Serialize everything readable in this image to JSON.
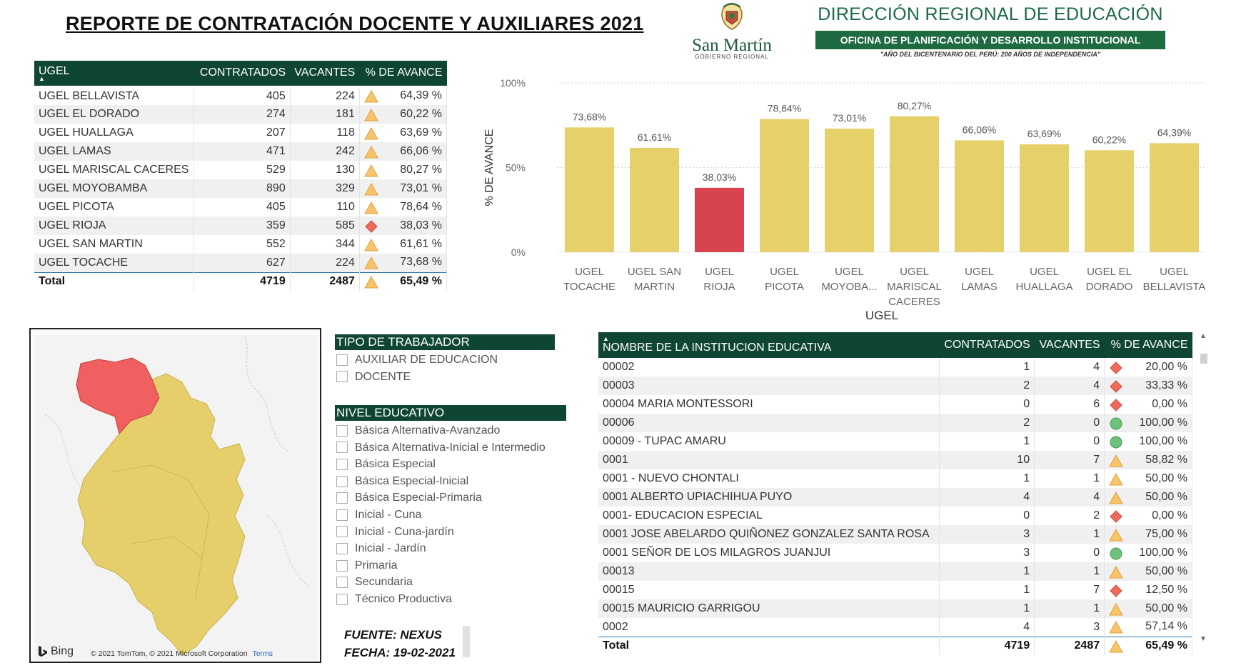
{
  "header": {
    "title": "REPORTE DE CONTRATACIÓN DOCENTE Y AUXILIARES 2021",
    "logo_name": "San Martín",
    "logo_sub": "GOBIERNO REGIONAL",
    "dre_title": "DIRECCIÓN REGIONAL DE EDUCACIÓN",
    "dre_office": "OFICINA DE PLANIFICACIÓN Y DESARROLLO INSTITUCIONAL",
    "dre_motto": "\"AÑO DEL BICENTENARIO DEL PERÚ: 200 AÑOS DE INDEPENDENCIA\""
  },
  "ugel_table": {
    "columns": [
      "UGEL",
      "CONTRATADOS",
      "VACANTES",
      "% DE AVANCE"
    ],
    "rows": [
      {
        "ugel": "UGEL BELLAVISTA",
        "contratados": "405",
        "vacantes": "224",
        "icon": "warning-triangle",
        "avance": "64,39 %"
      },
      {
        "ugel": "UGEL EL DORADO",
        "contratados": "274",
        "vacantes": "181",
        "icon": "warning-triangle",
        "avance": "60,22 %"
      },
      {
        "ugel": "UGEL HUALLAGA",
        "contratados": "207",
        "vacantes": "118",
        "icon": "warning-triangle",
        "avance": "63,69 %"
      },
      {
        "ugel": "UGEL LAMAS",
        "contratados": "471",
        "vacantes": "242",
        "icon": "warning-triangle",
        "avance": "66,06 %"
      },
      {
        "ugel": "UGEL MARISCAL CACERES",
        "contratados": "529",
        "vacantes": "130",
        "icon": "warning-triangle",
        "avance": "80,27 %"
      },
      {
        "ugel": "UGEL MOYOBAMBA",
        "contratados": "890",
        "vacantes": "329",
        "icon": "warning-triangle",
        "avance": "73,01 %"
      },
      {
        "ugel": "UGEL PICOTA",
        "contratados": "405",
        "vacantes": "110",
        "icon": "warning-triangle",
        "avance": "78,64 %"
      },
      {
        "ugel": "UGEL RIOJA",
        "contratados": "359",
        "vacantes": "585",
        "icon": "red-diamond",
        "avance": "38,03 %"
      },
      {
        "ugel": "UGEL SAN MARTIN",
        "contratados": "552",
        "vacantes": "344",
        "icon": "warning-triangle",
        "avance": "61,61 %"
      },
      {
        "ugel": "UGEL TOCACHE",
        "contratados": "627",
        "vacantes": "224",
        "icon": "warning-triangle",
        "avance": "73,68 %"
      }
    ],
    "total": {
      "label": "Total",
      "contratados": "4719",
      "vacantes": "2487",
      "icon": "warning-triangle",
      "avance": "65,49 %"
    }
  },
  "chart_data": {
    "type": "bar",
    "categories": [
      "UGEL TOCACHE",
      "UGEL SAN MARTIN",
      "UGEL RIOJA",
      "UGEL PICOTA",
      "UGEL MOYOBA...",
      "UGEL MARISCAL CACERES",
      "UGEL LAMAS",
      "UGEL HUALLAGA",
      "UGEL EL DORADO",
      "UGEL BELLAVISTA"
    ],
    "category_lines": [
      [
        "UGEL",
        "TOCACHE"
      ],
      [
        "UGEL SAN",
        "MARTIN"
      ],
      [
        "UGEL",
        "RIOJA"
      ],
      [
        "UGEL",
        "PICOTA"
      ],
      [
        "UGEL",
        "MOYOBA..."
      ],
      [
        "UGEL",
        "MARISCAL",
        "CACERES"
      ],
      [
        "UGEL",
        "LAMAS"
      ],
      [
        "UGEL",
        "HUALLAGA"
      ],
      [
        "UGEL EL",
        "DORADO"
      ],
      [
        "UGEL",
        "BELLAVISTA"
      ]
    ],
    "values": [
      73.68,
      61.61,
      38.03,
      78.64,
      73.01,
      80.27,
      66.06,
      63.69,
      60.22,
      64.39
    ],
    "data_labels": [
      "73,68%",
      "61,61%",
      "38,03%",
      "78,64%",
      "73,01%",
      "80,27%",
      "66,06%",
      "63,69%",
      "60,22%",
      "64,39%"
    ],
    "xlabel": "UGEL",
    "ylabel": "% DE AVANCE",
    "ylim": [
      0,
      100
    ],
    "yticks": [
      0,
      50,
      100
    ],
    "ytick_labels": [
      "0%",
      "50%",
      "100%"
    ],
    "grid": true,
    "colors": {
      "default": "#e6d06a",
      "highlight": "#d7434f"
    },
    "highlight_category": "UGEL RIOJA"
  },
  "map": {
    "provider": "Bing",
    "copyright": "© 2021 TomTom, © 2021 Microsoft Corporation",
    "terms": "Terms",
    "colors": {
      "region": "#e6cf6a",
      "highlight": "#f06060"
    }
  },
  "slicers": {
    "tipo": {
      "title": "TIPO DE TRABAJADOR",
      "items": [
        "AUXILIAR DE EDUCACION",
        "DOCENTE"
      ]
    },
    "nivel": {
      "title": "NIVEL EDUCATIVO",
      "items": [
        "Básica Alternativa-Avanzado",
        "Básica Alternativa-Inicial e Intermedio",
        "Básica Especial",
        "Básica Especial-Inicial",
        "Básica Especial-Primaria",
        "Inicial - Cuna",
        "Inicial - Cuna-jardín",
        "Inicial - Jardín",
        "Primaria",
        "Secundaria",
        "Técnico Productiva"
      ]
    }
  },
  "source": {
    "fuente": "FUENTE: NEXUS",
    "fecha": "FECHA: 19-02-2021"
  },
  "ie_table": {
    "columns": [
      "NOMBRE DE LA INSTITUCION EDUCATIVA",
      "CONTRATADOS",
      "VACANTES",
      "% DE AVANCE"
    ],
    "rows": [
      {
        "nombre": "00002",
        "contratados": "1",
        "vacantes": "4",
        "icon": "red-diamond",
        "avance": "20,00 %"
      },
      {
        "nombre": "00003",
        "contratados": "2",
        "vacantes": "4",
        "icon": "red-diamond",
        "avance": "33,33 %"
      },
      {
        "nombre": "00004 MARIA MONTESSORI",
        "contratados": "0",
        "vacantes": "6",
        "icon": "red-diamond",
        "avance": "0,00 %"
      },
      {
        "nombre": "00006",
        "contratados": "2",
        "vacantes": "0",
        "icon": "green-circle",
        "avance": "100,00 %"
      },
      {
        "nombre": "00009 - TUPAC AMARU",
        "contratados": "1",
        "vacantes": "0",
        "icon": "green-circle",
        "avance": "100,00 %"
      },
      {
        "nombre": "0001",
        "contratados": "10",
        "vacantes": "7",
        "icon": "warning-triangle",
        "avance": "58,82 %"
      },
      {
        "nombre": "0001 - NUEVO CHONTALI",
        "contratados": "1",
        "vacantes": "1",
        "icon": "warning-triangle",
        "avance": "50,00 %"
      },
      {
        "nombre": "0001 ALBERTO UPIACHIHUA PUYO",
        "contratados": "4",
        "vacantes": "4",
        "icon": "warning-triangle",
        "avance": "50,00 %"
      },
      {
        "nombre": "0001- EDUCACION ESPECIAL",
        "contratados": "0",
        "vacantes": "2",
        "icon": "red-diamond",
        "avance": "0,00 %"
      },
      {
        "nombre": "0001 JOSE ABELARDO QUIÑONEZ GONZALEZ SANTA ROSA",
        "contratados": "3",
        "vacantes": "1",
        "icon": "warning-triangle",
        "avance": "75,00 %"
      },
      {
        "nombre": "0001 SEÑOR DE LOS MILAGROS JUANJUI",
        "contratados": "3",
        "vacantes": "0",
        "icon": "green-circle",
        "avance": "100,00 %"
      },
      {
        "nombre": "00013",
        "contratados": "1",
        "vacantes": "1",
        "icon": "warning-triangle",
        "avance": "50,00 %"
      },
      {
        "nombre": "00015",
        "contratados": "1",
        "vacantes": "7",
        "icon": "red-diamond",
        "avance": "12,50 %"
      },
      {
        "nombre": "00015 MAURICIO GARRIGOU",
        "contratados": "1",
        "vacantes": "1",
        "icon": "warning-triangle",
        "avance": "50,00 %"
      },
      {
        "nombre": "0002",
        "contratados": "4",
        "vacantes": "3",
        "icon": "warning-triangle",
        "avance": "57,14 %"
      }
    ],
    "total": {
      "label": "Total",
      "contratados": "4719",
      "vacantes": "2487",
      "icon": "warning-triangle",
      "avance": "65,49 %"
    }
  },
  "colors": {
    "header_green": "#0e4633",
    "bar_yellow": "#e6d06a",
    "bar_red": "#d7434f",
    "triangle": "#f7c46a",
    "diamond": "#ee6a5a",
    "circle": "#6fc07a"
  }
}
